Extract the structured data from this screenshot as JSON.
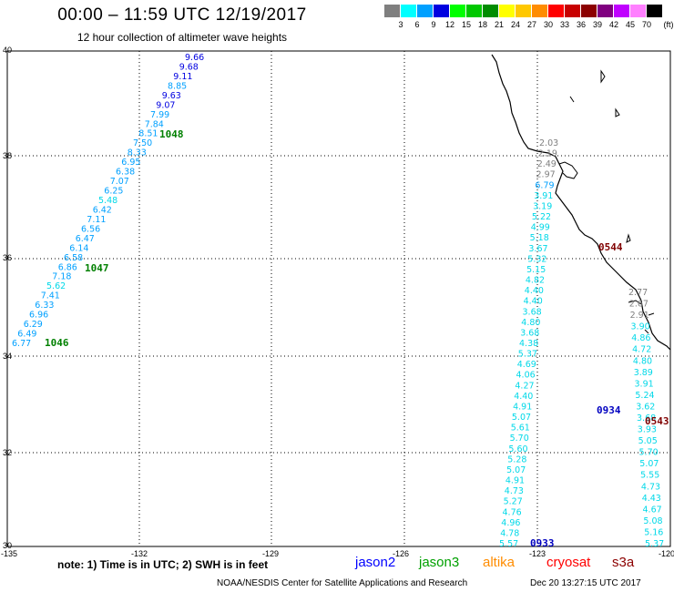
{
  "header": {
    "title": "00:00 – 11:59 UTC 12/19/2017",
    "subtitle": "12 hour collection of altimeter wave heights"
  },
  "legend": {
    "unit": "(ft)",
    "items": [
      {
        "label": "3",
        "color": "#7f7f7f"
      },
      {
        "label": "6",
        "color": "#00ffff"
      },
      {
        "label": "9",
        "color": "#00a0ff"
      },
      {
        "label": "12",
        "color": "#0000e0"
      },
      {
        "label": "15",
        "color": "#00ff00"
      },
      {
        "label": "18",
        "color": "#00c800"
      },
      {
        "label": "21",
        "color": "#008c00"
      },
      {
        "label": "24",
        "color": "#ffff00"
      },
      {
        "label": "27",
        "color": "#ffc800"
      },
      {
        "label": "30",
        "color": "#ff8c00"
      },
      {
        "label": "33",
        "color": "#ff0000"
      },
      {
        "label": "36",
        "color": "#c80000"
      },
      {
        "label": "39",
        "color": "#8c0000"
      },
      {
        "label": "42",
        "color": "#800080"
      },
      {
        "label": "45",
        "color": "#c000ff"
      },
      {
        "label": "70",
        "color": "#ff80ff"
      },
      {
        "label": "",
        "color": "#000000"
      }
    ]
  },
  "axes": {
    "lat_labels": [
      "40",
      "38",
      "36",
      "34",
      "32",
      "30"
    ],
    "lon_labels": [
      "-135",
      "-132",
      "-129",
      "-126",
      "-123",
      "-120"
    ]
  },
  "passes": [
    {
      "label": "1048",
      "color": "#008000"
    },
    {
      "label": "1047",
      "color": "#008000"
    },
    {
      "label": "1046",
      "color": "#008000"
    },
    {
      "label": "0544",
      "color": "#800000"
    },
    {
      "label": "0934",
      "color": "#0000c0"
    },
    {
      "label": "0543",
      "color": "#800000"
    },
    {
      "label": "0933",
      "color": "#0000c0"
    }
  ],
  "tracks": {
    "track1048_1046": [
      "9.66",
      "9.68",
      "9.11",
      "8.85",
      "9.63",
      "9.07",
      "7.99",
      "7.84",
      "8.51",
      "7.50",
      "8.33",
      "6.95",
      "6.38",
      "7.07",
      "6.25",
      "5.48",
      "6.42",
      "7.11",
      "6.56",
      "6.47",
      "6.14",
      "6.58",
      "6.86",
      "7.18",
      "5.62",
      "7.41",
      "6.33",
      "6.96",
      "6.29",
      "6.49",
      "6.77"
    ],
    "track0544": [
      "2.03",
      "2.19",
      "2.49",
      "2.97",
      "6.79",
      "3.91",
      "3.19",
      "5.22",
      "4.99",
      "5.18",
      "3.67",
      "5.32",
      "5.15",
      "4.82",
      "4.40",
      "4.40",
      "3.68",
      "4.80",
      "3.68",
      "4.38",
      "5.37",
      "4.69",
      "4.06",
      "4.27",
      "4.40",
      "4.91",
      "5.07",
      "5.61",
      "5.70",
      "5.60",
      "5.28",
      "5.07",
      "4.91",
      "4.73",
      "5.27",
      "4.76",
      "4.96",
      "4.78",
      "5.57"
    ],
    "track0543": [
      "2.77",
      "2.67",
      "2.91",
      "3.90",
      "4.86",
      "4.72",
      "4.80",
      "3.89",
      "3.91",
      "5.24",
      "3.62",
      "3.68",
      "3.93",
      "5.05",
      "5.70",
      "5.07",
      "5.55",
      "4.73",
      "4.43",
      "4.67",
      "5.08",
      "5.16",
      "5.37"
    ]
  },
  "note": "note: 1) Time is in UTC; 2) SWH is in feet",
  "satellites": [
    {
      "name": "jason2",
      "color": "#0000ff"
    },
    {
      "name": "jason3",
      "color": "#00a000"
    },
    {
      "name": "altika",
      "color": "#ff8c00"
    },
    {
      "name": "cryosat",
      "color": "#ff0000"
    },
    {
      "name": "s3a",
      "color": "#8c0000"
    }
  ],
  "footer": {
    "credit": "NOAA/NESDIS Center for Satellite Applications and Research",
    "timestamp": "Dec 20 13:27:15 UTC 2017"
  }
}
